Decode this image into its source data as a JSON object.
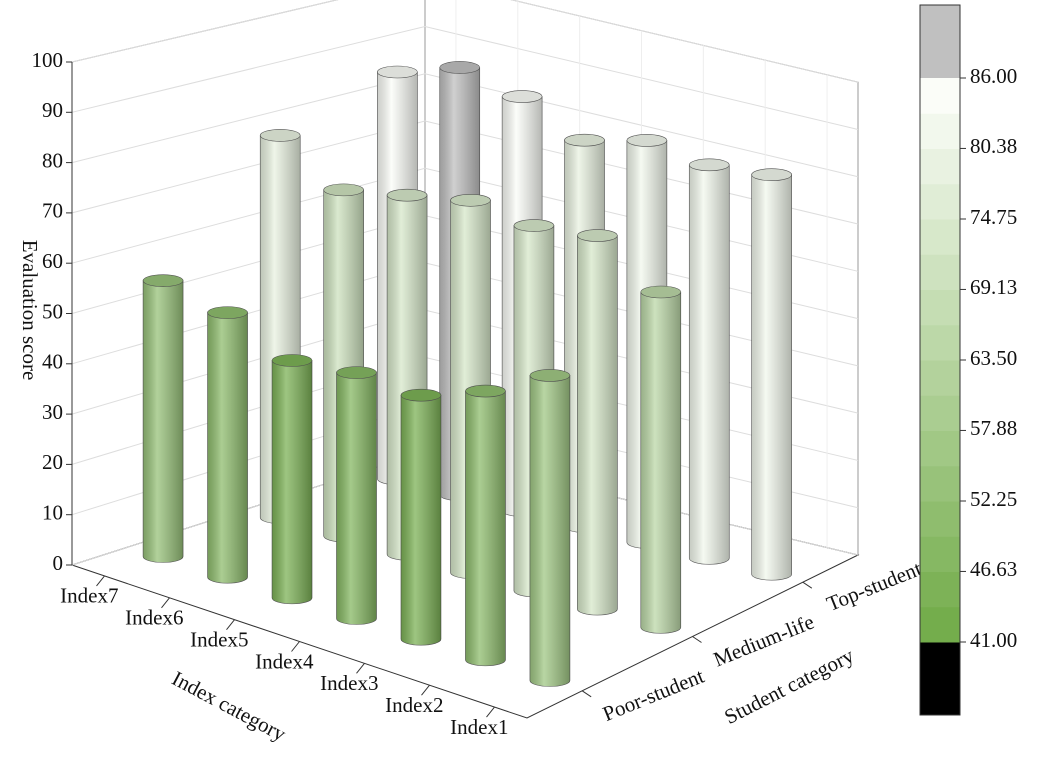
{
  "chart_data": {
    "type": "bar3d",
    "zlabel": "Evaluation score",
    "xlabel": "Index category",
    "ylabel": "Student category",
    "categories": [
      "Index7",
      "Index6",
      "Index5",
      "Index4",
      "Index3",
      "Index2",
      "Index1"
    ],
    "series": [
      {
        "name": "Poor-student",
        "values": [
          55,
          52,
          46,
          47,
          46,
          50,
          56
        ]
      },
      {
        "name": "Medium-life",
        "values": [
          78,
          70,
          72,
          74,
          72,
          73,
          65
        ]
      },
      {
        "name": "Top-student",
        "values": [
          85,
          89,
          86,
          80,
          83,
          81,
          82
        ]
      }
    ],
    "zlim": [
      0,
      100
    ],
    "zticks": [
      0,
      10,
      20,
      30,
      40,
      50,
      60,
      70,
      80,
      90,
      100
    ],
    "grid": true,
    "colorbar": {
      "lim": [
        41,
        86
      ],
      "ticks": [
        {
          "value": 41,
          "label": "41.00"
        },
        {
          "value": 46.63,
          "label": "46.63"
        },
        {
          "value": 52.25,
          "label": "52.25"
        },
        {
          "value": 57.88,
          "label": "57.88"
        },
        {
          "value": 63.5,
          "label": "63.50"
        },
        {
          "value": 69.13,
          "label": "69.13"
        },
        {
          "value": 74.75,
          "label": "74.75"
        },
        {
          "value": 80.38,
          "label": "80.38"
        },
        {
          "value": 86,
          "label": "86.00"
        }
      ],
      "bands": 16,
      "low_color": "#74ad4c",
      "high_color": "#fbfdf8",
      "over_color": "#c0c0c0",
      "under_color": "#000000"
    }
  }
}
